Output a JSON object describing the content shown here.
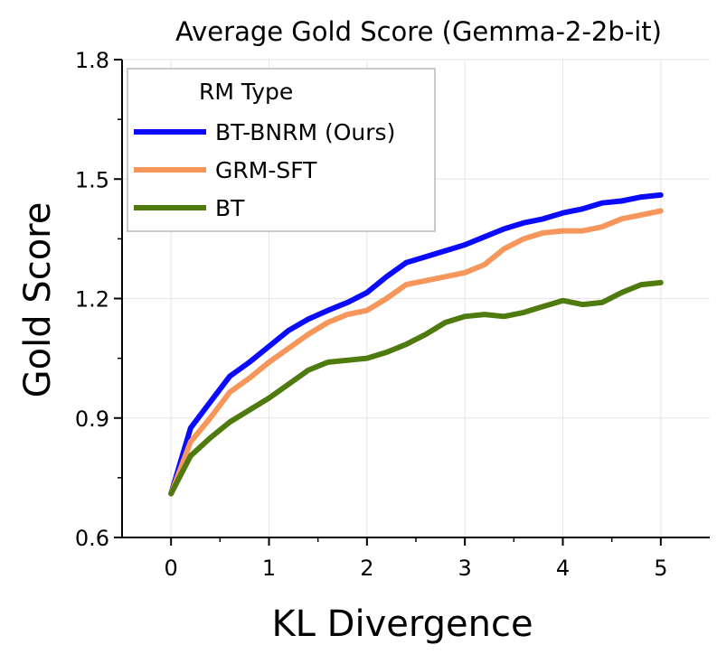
{
  "chart_data": {
    "type": "line",
    "title": "Average Gold Score (Gemma-2-2b-it)",
    "xlabel": "KL Divergence",
    "ylabel": "Gold Score",
    "xlim": [
      -0.5,
      5.5
    ],
    "ylim": [
      0.6,
      1.8
    ],
    "xticks": [
      0,
      1,
      2,
      3,
      4,
      5
    ],
    "yticks": [
      0.6,
      0.9,
      1.2,
      1.5,
      1.8
    ],
    "xtick_labels": [
      "0",
      "1",
      "2",
      "3",
      "4",
      "5"
    ],
    "ytick_labels": [
      "0.6",
      "0.9",
      "1.2",
      "1.5",
      "1.8"
    ],
    "grid": true,
    "legend": {
      "title": "RM Type",
      "placement": "top-left"
    },
    "series": [
      {
        "name": "BT-BNRM (Ours)",
        "color": "#0a0aff",
        "x": [
          0,
          0.2,
          0.4,
          0.6,
          0.8,
          1.0,
          1.2,
          1.4,
          1.6,
          1.8,
          2.0,
          2.2,
          2.4,
          2.6,
          2.8,
          3.0,
          3.2,
          3.4,
          3.6,
          3.8,
          4.0,
          4.2,
          4.4,
          4.6,
          4.8,
          5.0
        ],
        "y": [
          0.71,
          0.875,
          0.94,
          1.005,
          1.04,
          1.08,
          1.12,
          1.148,
          1.17,
          1.19,
          1.215,
          1.255,
          1.29,
          1.305,
          1.32,
          1.335,
          1.355,
          1.375,
          1.39,
          1.4,
          1.415,
          1.425,
          1.44,
          1.445,
          1.455,
          1.46
        ]
      },
      {
        "name": "GRM-SFT",
        "color": "#f7965a",
        "x": [
          0,
          0.2,
          0.4,
          0.6,
          0.8,
          1.0,
          1.2,
          1.4,
          1.6,
          1.8,
          2.0,
          2.2,
          2.4,
          2.6,
          2.8,
          3.0,
          3.2,
          3.4,
          3.6,
          3.8,
          4.0,
          4.2,
          4.4,
          4.6,
          4.8,
          5.0
        ],
        "y": [
          0.71,
          0.84,
          0.9,
          0.965,
          1.0,
          1.04,
          1.075,
          1.11,
          1.14,
          1.16,
          1.17,
          1.2,
          1.235,
          1.245,
          1.255,
          1.265,
          1.285,
          1.325,
          1.35,
          1.365,
          1.37,
          1.37,
          1.38,
          1.4,
          1.41,
          1.42
        ]
      },
      {
        "name": "BT",
        "color": "#4f7a0e",
        "x": [
          0,
          0.2,
          0.4,
          0.6,
          0.8,
          1.0,
          1.2,
          1.4,
          1.6,
          1.8,
          2.0,
          2.2,
          2.4,
          2.6,
          2.8,
          3.0,
          3.2,
          3.4,
          3.6,
          3.8,
          4.0,
          4.2,
          4.4,
          4.6,
          4.8,
          5.0
        ],
        "y": [
          0.71,
          0.805,
          0.85,
          0.89,
          0.92,
          0.95,
          0.985,
          1.02,
          1.04,
          1.045,
          1.05,
          1.065,
          1.085,
          1.11,
          1.14,
          1.155,
          1.16,
          1.155,
          1.165,
          1.18,
          1.195,
          1.185,
          1.19,
          1.215,
          1.235,
          1.24
        ]
      }
    ]
  }
}
